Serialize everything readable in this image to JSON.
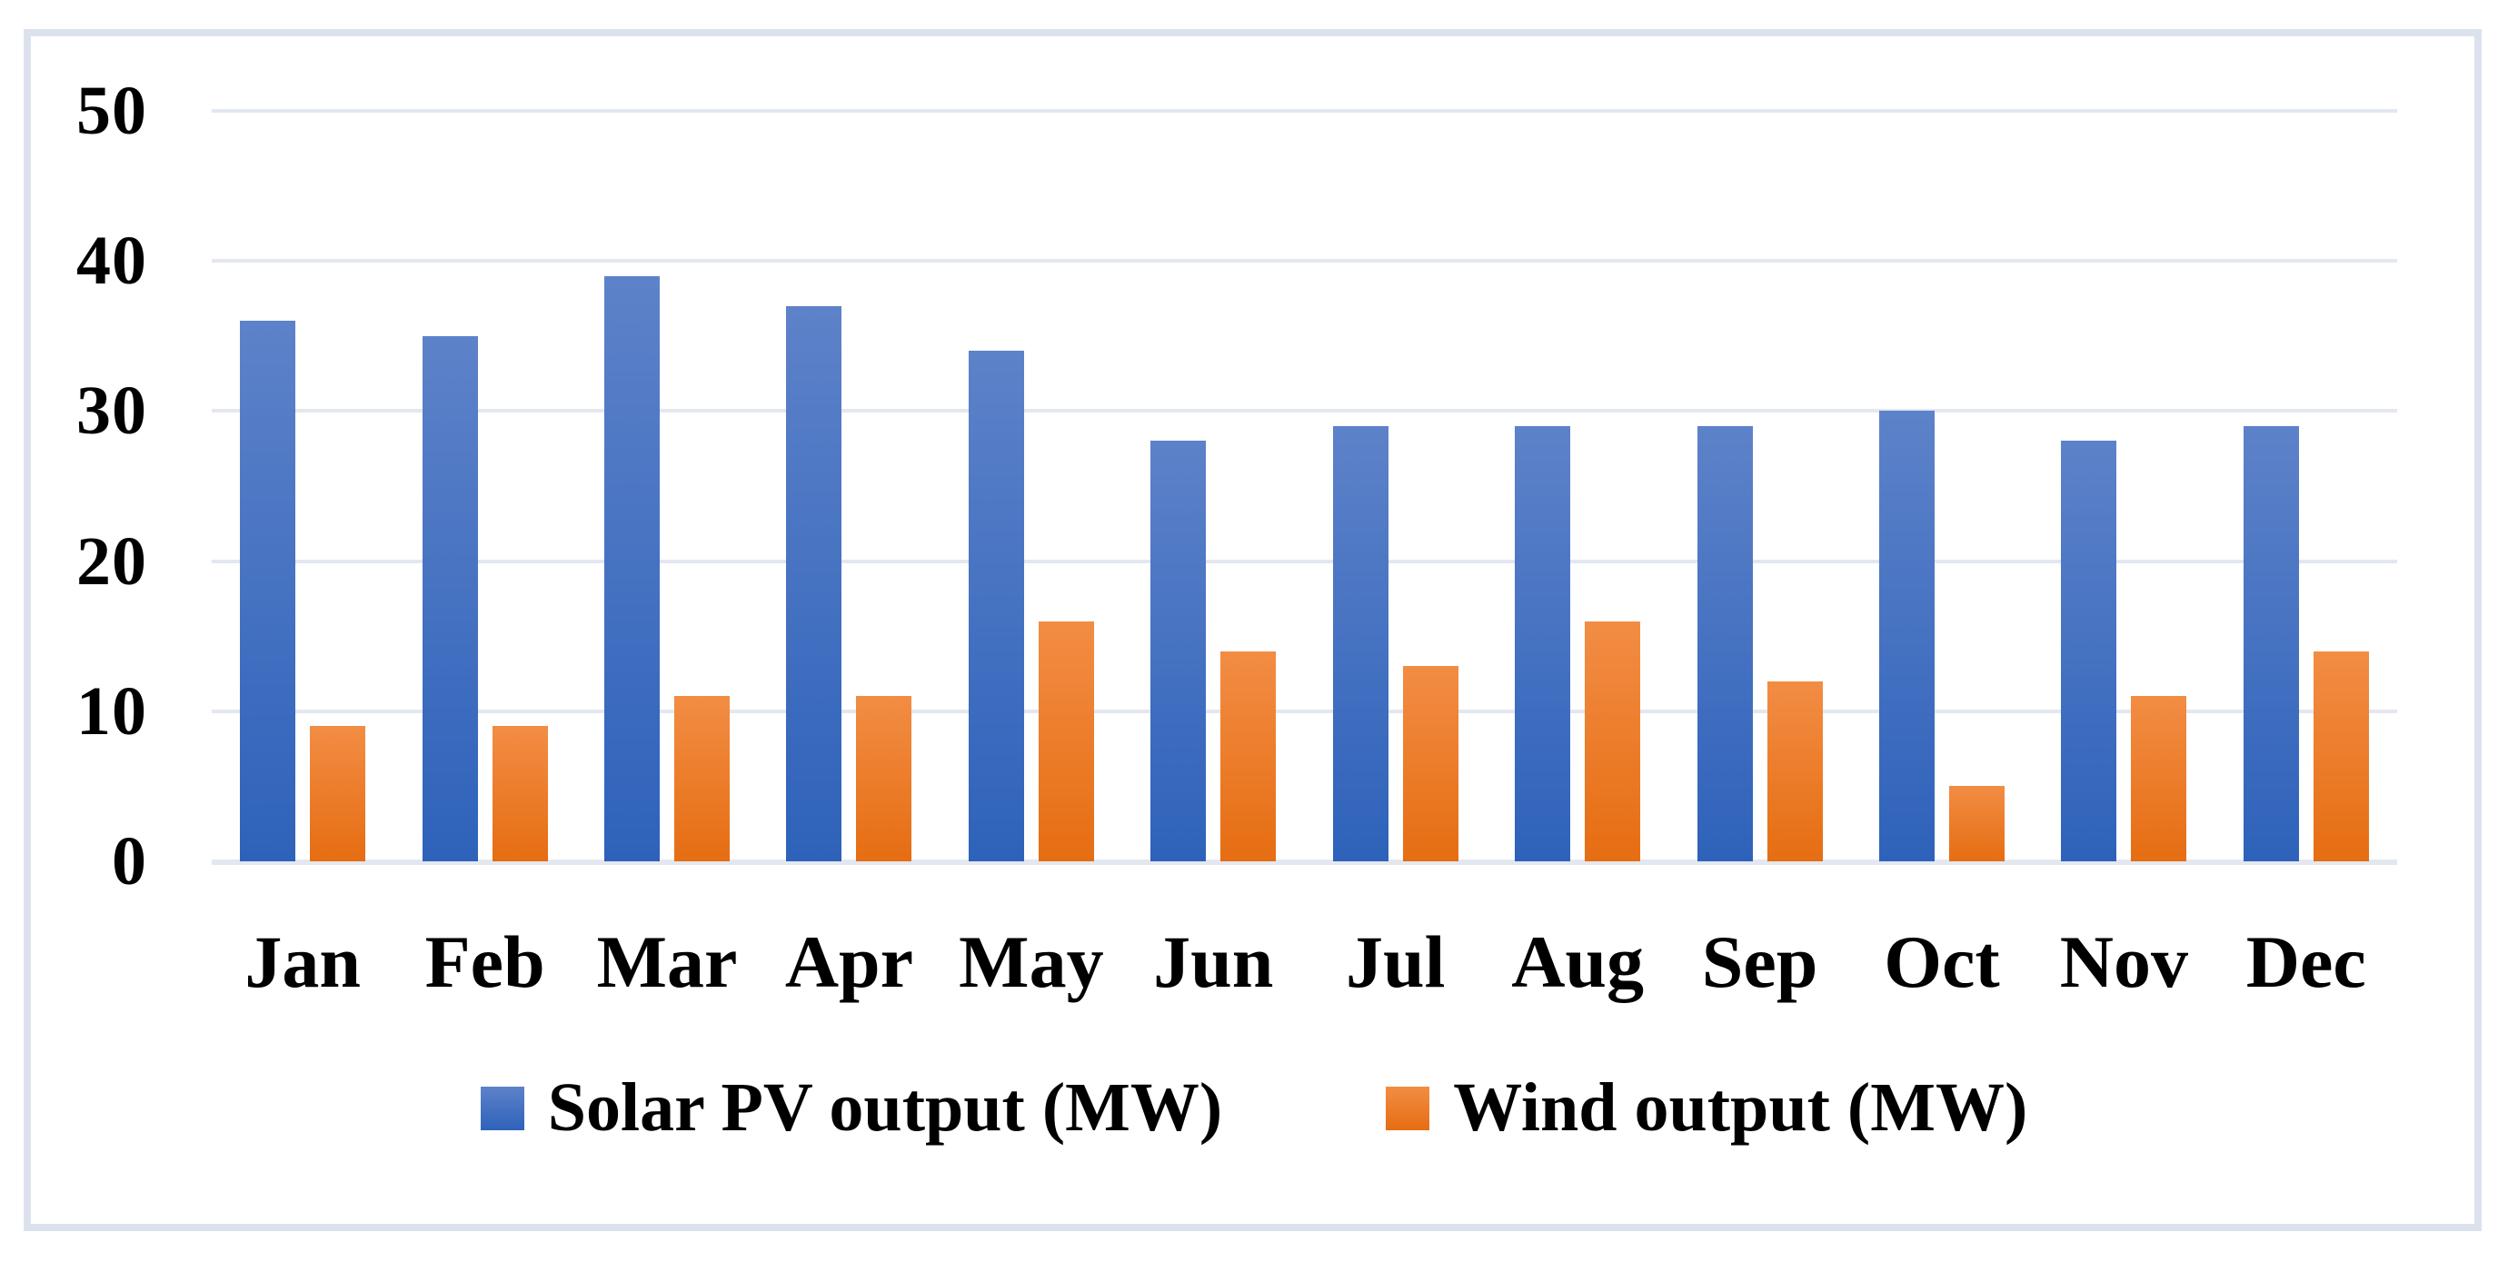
{
  "chart_data": {
    "type": "bar",
    "categories": [
      "Jan",
      "Feb",
      "Mar",
      "Apr",
      "May",
      "Jun",
      "Jul",
      "Aug",
      "Sep",
      "Oct",
      "Nov",
      "Dec"
    ],
    "series": [
      {
        "name": "Solar PV output (MW)",
        "values": [
          36,
          35,
          39,
          37,
          34,
          28,
          29,
          29,
          29,
          30,
          28,
          29
        ],
        "color_top": "#5d82c9",
        "color_bottom": "#2e62ba"
      },
      {
        "name": "Wind output (MW)",
        "values": [
          9,
          9,
          11,
          11,
          16,
          14,
          13,
          16,
          12,
          5,
          11,
          14
        ],
        "color_top": "#f28d44",
        "color_bottom": "#e66d12"
      }
    ],
    "title": "",
    "xlabel": "",
    "ylabel": "",
    "ylim": [
      0,
      50
    ],
    "yticks": [
      0,
      10,
      20,
      30,
      40,
      50
    ],
    "grid": true,
    "legend_position": "bottom"
  },
  "styles": {
    "background": "#ffffff",
    "frame_border_color": "#dce2ed",
    "gridline_color": "#e3e7f0",
    "text_color": "#000000"
  }
}
